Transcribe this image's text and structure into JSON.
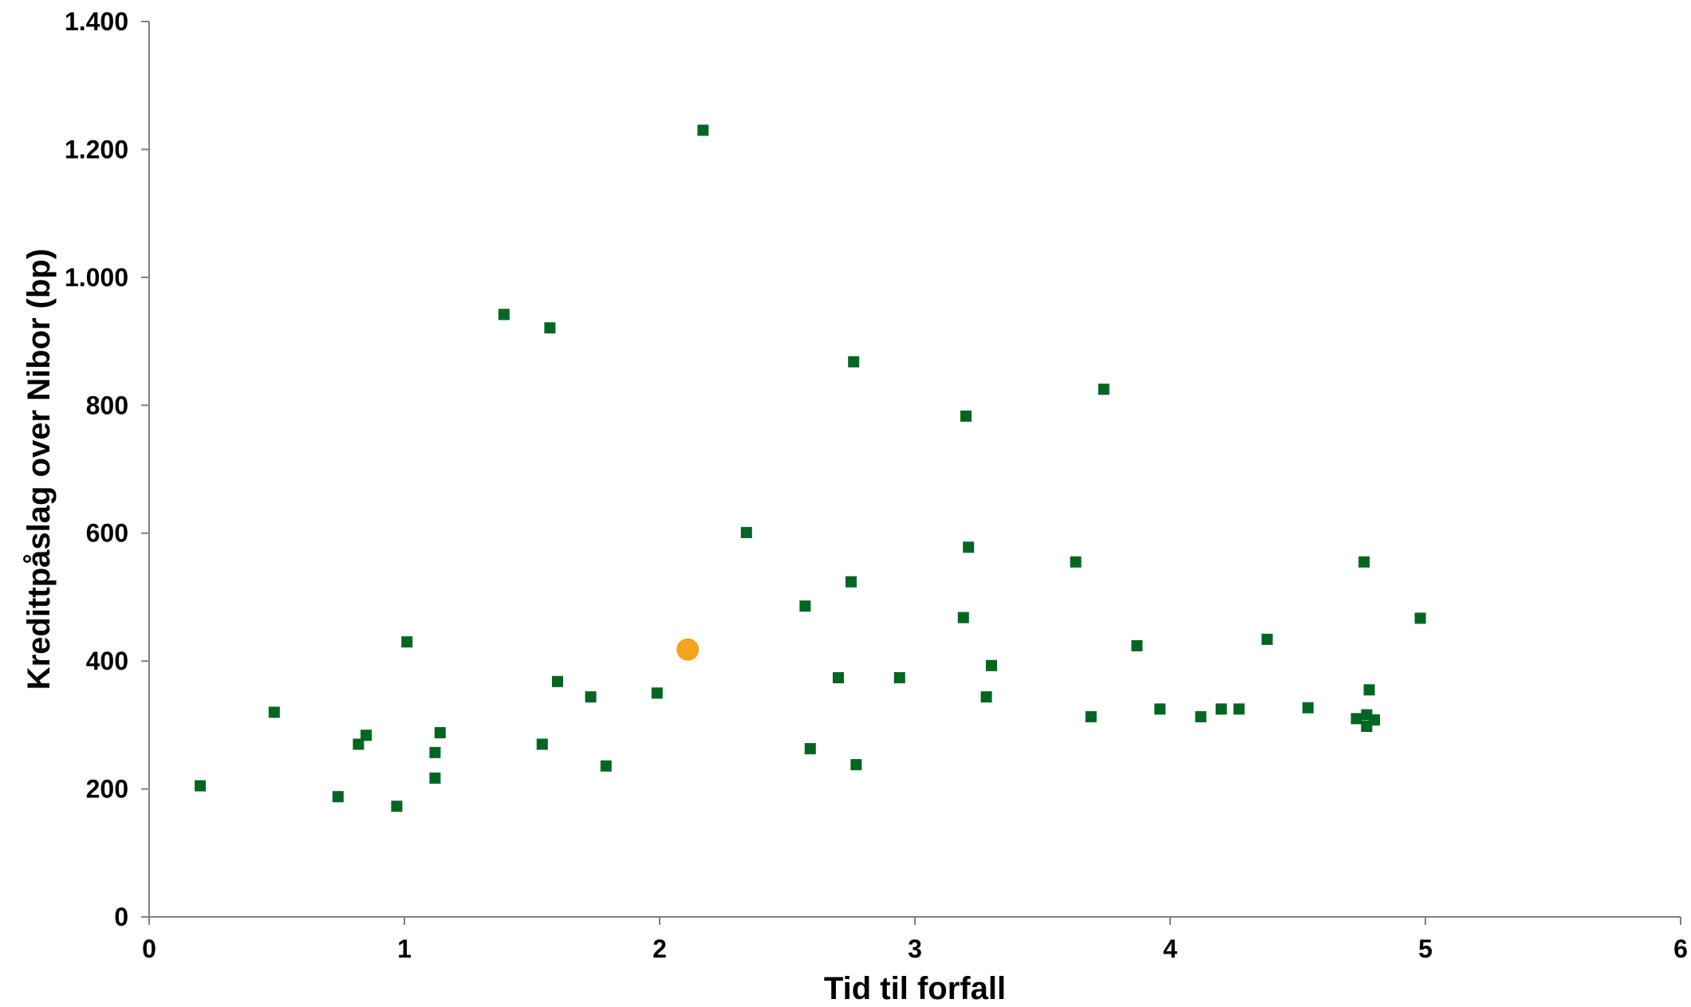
{
  "chart_data": {
    "type": "scatter",
    "title": "",
    "xlabel": "Tid til forfall",
    "ylabel": "Kredittpåslag over Nibor (bp)",
    "xlim": [
      0,
      6
    ],
    "ylim": [
      0,
      1400
    ],
    "x_ticks": [
      0,
      1,
      2,
      3,
      4,
      5,
      6
    ],
    "x_tick_labels": [
      "0",
      "1",
      "2",
      "3",
      "4",
      "5",
      "6"
    ],
    "y_ticks": [
      0,
      200,
      400,
      600,
      800,
      1000,
      1200,
      1400
    ],
    "y_tick_labels": [
      "0",
      "200",
      "400",
      "600",
      "800",
      "1.000",
      "1.200",
      "1.400"
    ],
    "grid": false,
    "legend": "none",
    "series": [
      {
        "marker": "square",
        "color": "#006622",
        "points": [
          [
            0.2,
            205
          ],
          [
            0.49,
            320
          ],
          [
            0.74,
            188
          ],
          [
            0.82,
            270
          ],
          [
            0.85,
            284
          ],
          [
            0.97,
            173
          ],
          [
            1.01,
            430
          ],
          [
            1.12,
            257
          ],
          [
            1.12,
            217
          ],
          [
            1.14,
            288
          ],
          [
            1.39,
            942
          ],
          [
            1.54,
            270
          ],
          [
            1.57,
            921
          ],
          [
            1.6,
            368
          ],
          [
            1.73,
            344
          ],
          [
            1.79,
            236
          ],
          [
            1.99,
            350
          ],
          [
            2.17,
            1230
          ],
          [
            2.34,
            601
          ],
          [
            2.57,
            486
          ],
          [
            2.59,
            263
          ],
          [
            2.7,
            374
          ],
          [
            2.75,
            524
          ],
          [
            2.76,
            868
          ],
          [
            2.77,
            238
          ],
          [
            2.94,
            374
          ],
          [
            3.19,
            468
          ],
          [
            3.2,
            783
          ],
          [
            3.21,
            578
          ],
          [
            3.28,
            344
          ],
          [
            3.3,
            393
          ],
          [
            3.63,
            555
          ],
          [
            3.69,
            313
          ],
          [
            3.74,
            825
          ],
          [
            3.87,
            424
          ],
          [
            3.96,
            325
          ],
          [
            4.12,
            313
          ],
          [
            4.2,
            325
          ],
          [
            4.27,
            325
          ],
          [
            4.38,
            434
          ],
          [
            4.54,
            327
          ],
          [
            4.73,
            310
          ],
          [
            4.76,
            555
          ],
          [
            4.77,
            316
          ],
          [
            4.77,
            298
          ],
          [
            4.78,
            355
          ],
          [
            4.8,
            308
          ],
          [
            4.98,
            467
          ]
        ]
      },
      {
        "marker": "circle",
        "color": "#F5A31A",
        "points": [
          [
            2.11,
            418
          ]
        ]
      }
    ]
  }
}
